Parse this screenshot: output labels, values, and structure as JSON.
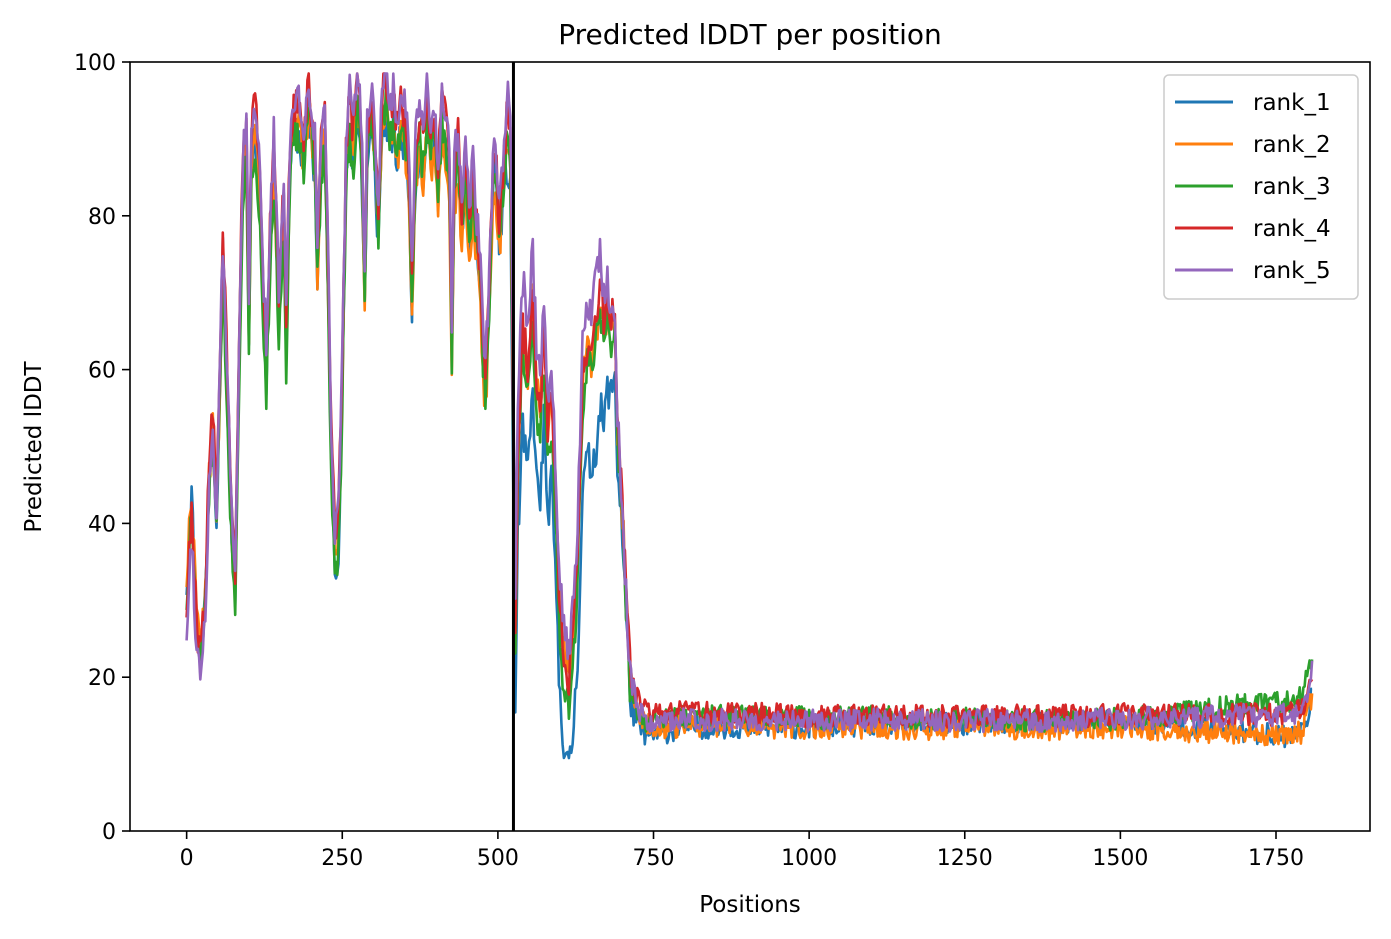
{
  "chart_data": {
    "type": "line",
    "title": "Predicted lDDT per position",
    "xlabel": "Positions",
    "ylabel": "Predicted lDDT",
    "xlim": [
      -91,
      1901
    ],
    "ylim": [
      0,
      100
    ],
    "x_ticks": [
      0,
      250,
      500,
      750,
      1000,
      1250,
      1500,
      1750
    ],
    "y_ticks": [
      0,
      20,
      40,
      60,
      80,
      100
    ],
    "x_tick_labels": [
      "0",
      "250",
      "500",
      "750",
      "1000",
      "1250",
      "1500",
      "1750"
    ],
    "y_tick_labels": [
      "0",
      "20",
      "40",
      "60",
      "80",
      "100"
    ],
    "grid": false,
    "legend_position": "top-right",
    "vertical_line_x": 525,
    "vertical_line_color": "#000000",
    "x_max_position": 1808,
    "profile_points": [
      [
        0,
        30
      ],
      [
        8,
        42
      ],
      [
        16,
        26
      ],
      [
        22,
        22
      ],
      [
        30,
        30
      ],
      [
        36,
        45
      ],
      [
        42,
        52
      ],
      [
        48,
        40
      ],
      [
        54,
        60
      ],
      [
        58,
        75
      ],
      [
        66,
        55
      ],
      [
        72,
        40
      ],
      [
        78,
        31
      ],
      [
        84,
        60
      ],
      [
        90,
        85
      ],
      [
        96,
        90
      ],
      [
        100,
        65
      ],
      [
        104,
        88
      ],
      [
        110,
        92
      ],
      [
        116,
        85
      ],
      [
        122,
        72
      ],
      [
        128,
        60
      ],
      [
        134,
        76
      ],
      [
        140,
        88
      ],
      [
        148,
        68
      ],
      [
        156,
        82
      ],
      [
        160,
        64
      ],
      [
        166,
        88
      ],
      [
        172,
        93
      ],
      [
        180,
        92
      ],
      [
        188,
        88
      ],
      [
        196,
        95
      ],
      [
        200,
        92
      ],
      [
        206,
        87
      ],
      [
        210,
        74
      ],
      [
        216,
        88
      ],
      [
        222,
        92
      ],
      [
        228,
        70
      ],
      [
        232,
        52
      ],
      [
        238,
        37
      ],
      [
        244,
        40
      ],
      [
        250,
        60
      ],
      [
        256,
        88
      ],
      [
        262,
        94
      ],
      [
        268,
        90
      ],
      [
        274,
        97
      ],
      [
        280,
        92
      ],
      [
        286,
        72
      ],
      [
        290,
        90
      ],
      [
        296,
        95
      ],
      [
        302,
        90
      ],
      [
        308,
        80
      ],
      [
        314,
        95
      ],
      [
        320,
        97
      ],
      [
        326,
        92
      ],
      [
        332,
        95
      ],
      [
        338,
        90
      ],
      [
        344,
        94
      ],
      [
        350,
        92
      ],
      [
        356,
        88
      ],
      [
        362,
        72
      ],
      [
        368,
        88
      ],
      [
        374,
        92
      ],
      [
        380,
        88
      ],
      [
        386,
        95
      ],
      [
        392,
        90
      ],
      [
        398,
        92
      ],
      [
        404,
        85
      ],
      [
        410,
        94
      ],
      [
        416,
        92
      ],
      [
        422,
        85
      ],
      [
        426,
        63
      ],
      [
        430,
        85
      ],
      [
        436,
        90
      ],
      [
        442,
        80
      ],
      [
        448,
        88
      ],
      [
        454,
        78
      ],
      [
        460,
        85
      ],
      [
        466,
        78
      ],
      [
        472,
        72
      ],
      [
        476,
        62
      ],
      [
        480,
        58
      ],
      [
        486,
        70
      ],
      [
        492,
        85
      ],
      [
        496,
        88
      ],
      [
        502,
        78
      ],
      [
        508,
        85
      ],
      [
        514,
        92
      ],
      [
        520,
        90
      ],
      [
        524,
        60
      ],
      [
        528,
        25
      ],
      [
        532,
        50
      ],
      [
        540,
        66
      ],
      [
        548,
        60
      ],
      [
        556,
        70
      ],
      [
        562,
        58
      ],
      [
        568,
        55
      ],
      [
        574,
        65
      ],
      [
        580,
        52
      ],
      [
        586,
        56
      ],
      [
        592,
        45
      ],
      [
        598,
        30
      ],
      [
        606,
        22
      ],
      [
        614,
        19
      ],
      [
        620,
        24
      ],
      [
        628,
        35
      ],
      [
        636,
        58
      ],
      [
        644,
        63
      ],
      [
        650,
        62
      ],
      [
        658,
        66
      ],
      [
        664,
        70
      ],
      [
        670,
        65
      ],
      [
        676,
        68
      ],
      [
        682,
        65
      ],
      [
        688,
        66
      ],
      [
        692,
        52
      ],
      [
        698,
        44
      ],
      [
        706,
        30
      ],
      [
        712,
        20
      ],
      [
        720,
        16
      ],
      [
        740,
        14
      ],
      [
        800,
        14.5
      ],
      [
        900,
        14.5
      ],
      [
        1000,
        14.3
      ],
      [
        1100,
        14.5
      ],
      [
        1200,
        14.3
      ],
      [
        1300,
        14.4
      ],
      [
        1400,
        14.3
      ],
      [
        1500,
        14.6
      ],
      [
        1600,
        14.4
      ],
      [
        1700,
        14.4
      ],
      [
        1770,
        14.2
      ],
      [
        1790,
        14.8
      ],
      [
        1800,
        17
      ],
      [
        1808,
        20
      ]
    ],
    "series": [
      {
        "name": "rank_1",
        "color": "#1f77b4",
        "offsets": [
          [
            0,
            2
          ],
          [
            30,
            1
          ],
          [
            60,
            0
          ],
          [
            200,
            -2
          ],
          [
            240,
            -3
          ],
          [
            300,
            -4
          ],
          [
            400,
            -3
          ],
          [
            500,
            -1
          ],
          [
            540,
            -14
          ],
          [
            600,
            -10
          ],
          [
            660,
            -16
          ],
          [
            700,
            -2
          ],
          [
            760,
            -1.5
          ],
          [
            805,
            -1
          ],
          [
            900,
            -1
          ],
          [
            1500,
            0
          ],
          [
            1700,
            -1.5
          ],
          [
            1808,
            -2
          ]
        ],
        "seed": 11
      },
      {
        "name": "rank_2",
        "color": "#ff7f0e",
        "offsets": [
          [
            0,
            3
          ],
          [
            60,
            -1
          ],
          [
            200,
            -1
          ],
          [
            300,
            -2
          ],
          [
            420,
            -4
          ],
          [
            500,
            -3
          ],
          [
            540,
            -2
          ],
          [
            600,
            2
          ],
          [
            660,
            -1
          ],
          [
            700,
            1
          ],
          [
            760,
            -0.8
          ],
          [
            1000,
            -1
          ],
          [
            1500,
            -1
          ],
          [
            1808,
            -2
          ]
        ],
        "seed": 22
      },
      {
        "name": "rank_3",
        "color": "#2ca02c",
        "offsets": [
          [
            0,
            0
          ],
          [
            60,
            -2
          ],
          [
            150,
            -4
          ],
          [
            200,
            -1
          ],
          [
            240,
            -5
          ],
          [
            300,
            -2
          ],
          [
            420,
            -2
          ],
          [
            500,
            -1
          ],
          [
            540,
            -3
          ],
          [
            600,
            -4
          ],
          [
            660,
            -2
          ],
          [
            700,
            -1
          ],
          [
            760,
            0.4
          ],
          [
            1000,
            0.4
          ],
          [
            1500,
            0
          ],
          [
            1808,
            3
          ]
        ],
        "seed": 33
      },
      {
        "name": "rank_4",
        "color": "#d62728",
        "offsets": [
          [
            0,
            -1
          ],
          [
            60,
            4
          ],
          [
            150,
            2
          ],
          [
            200,
            2
          ],
          [
            240,
            1
          ],
          [
            300,
            1
          ],
          [
            420,
            1
          ],
          [
            500,
            1
          ],
          [
            540,
            0
          ],
          [
            600,
            1
          ],
          [
            660,
            1
          ],
          [
            700,
            2
          ],
          [
            760,
            1
          ],
          [
            1000,
            0.6
          ],
          [
            1500,
            0.6
          ],
          [
            1808,
            1
          ]
        ],
        "seed": 44
      },
      {
        "name": "rank_5",
        "color": "#9467bd",
        "offsets": [
          [
            0,
            -4
          ],
          [
            60,
            2
          ],
          [
            150,
            3
          ],
          [
            200,
            3
          ],
          [
            240,
            2
          ],
          [
            300,
            2
          ],
          [
            420,
            2
          ],
          [
            500,
            2
          ],
          [
            540,
            6
          ],
          [
            600,
            4
          ],
          [
            660,
            6
          ],
          [
            700,
            1
          ],
          [
            760,
            0
          ],
          [
            1000,
            0
          ],
          [
            1500,
            0
          ],
          [
            1808,
            1
          ]
        ],
        "seed": 55
      }
    ]
  }
}
